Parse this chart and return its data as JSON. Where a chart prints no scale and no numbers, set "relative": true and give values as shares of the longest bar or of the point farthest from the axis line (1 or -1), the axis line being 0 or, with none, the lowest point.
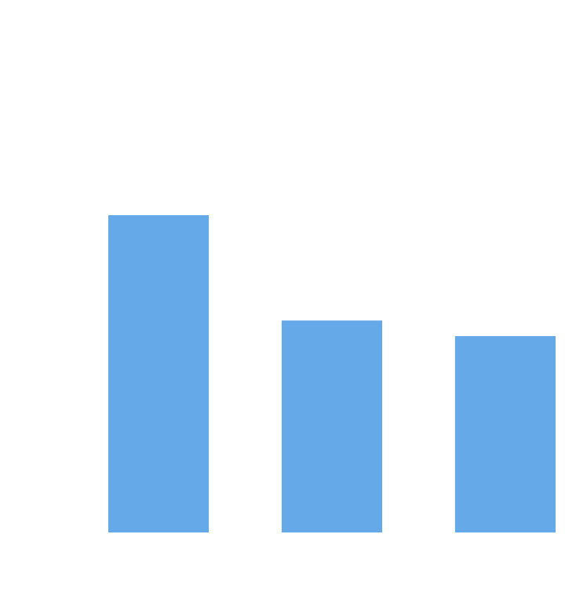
{
  "chart_data": {
    "type": "bar",
    "relative": true,
    "categories": [
      null,
      null,
      null
    ],
    "values": [
      1,
      0.668,
      0.619
    ],
    "color": "#65a9e8"
  }
}
